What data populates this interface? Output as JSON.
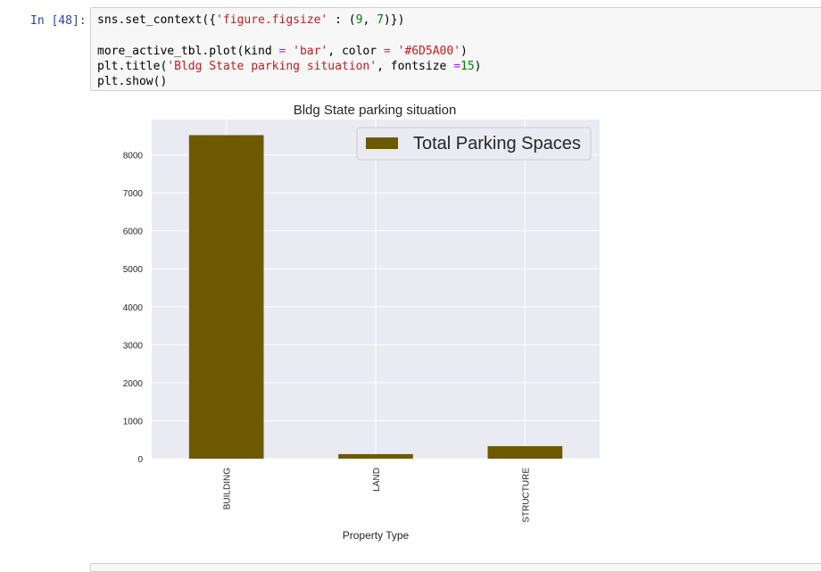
{
  "cell": {
    "prompt": "In [48]:",
    "code": {
      "line1": {
        "a": "sns.set_context({",
        "b": "'figure.figsize'",
        "c": " : (",
        "d": "9",
        "e": ", ",
        "f": "7",
        "g": ")})"
      },
      "line2": {
        "a": "more_active_tbl.plot(kind ",
        "b": "=",
        "c": " ",
        "d": "'bar'",
        "e": ", color ",
        "f": "=",
        "g": " ",
        "h": "'#6D5A00'",
        "i": ")"
      },
      "line3": {
        "a": "plt.title(",
        "b": "'Bldg State parking situation'",
        "c": ", fontsize ",
        "d": "=",
        "e": "15",
        "f": ")"
      },
      "line4": {
        "a": "plt.show()"
      }
    }
  },
  "chart_data": {
    "type": "bar",
    "title": "Bldg State parking situation",
    "xlabel": "Property Type",
    "ylabel": "",
    "categories": [
      "BUILDING",
      "LAND",
      "STRUCTURE"
    ],
    "series": [
      {
        "name": "Total Parking Spaces",
        "values": [
          8520,
          120,
          330
        ]
      }
    ],
    "ylim": [
      0,
      8930
    ],
    "yticks": [
      0,
      1000,
      2000,
      3000,
      4000,
      5000,
      6000,
      7000,
      8000
    ],
    "bar_color": "#6D5A00",
    "plot_bg": "#EAEAF2",
    "grid": true,
    "legend_position": "top-right"
  }
}
